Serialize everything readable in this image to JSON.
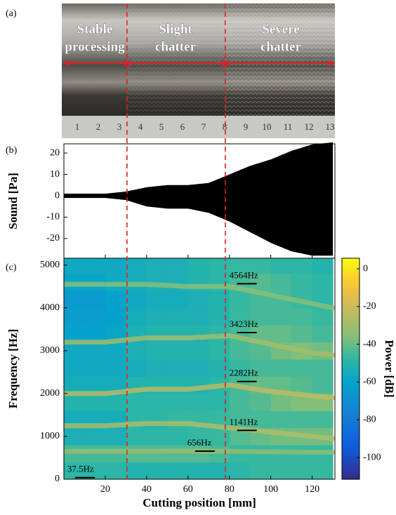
{
  "photo": {
    "label": "(a)",
    "regions": [
      [
        "Stable",
        "processing"
      ],
      [
        "Slight",
        "chatter"
      ],
      [
        "Severe",
        "chatter"
      ]
    ],
    "ruler_labels": [
      "1",
      "2",
      "3",
      "4",
      "5",
      "6",
      "7",
      "8",
      "9",
      "10",
      "11",
      "12",
      "13"
    ]
  },
  "chart_data": [
    {
      "type": "area",
      "panel": "(b)",
      "ylabel": "Sound [Pa]",
      "x": [
        0,
        10,
        20,
        30,
        40,
        50,
        60,
        70,
        80,
        90,
        100,
        110,
        120,
        130
      ],
      "series": [
        {
          "color": "#000000",
          "values": [
            1,
            1,
            1,
            2,
            4,
            5,
            5,
            6,
            10,
            14,
            17,
            21,
            24,
            25
          ]
        },
        {
          "color": "#000000",
          "values": [
            -1,
            -1,
            -1,
            -2,
            -5,
            -6,
            -6,
            -8,
            -12,
            -17,
            -22,
            -26,
            -28,
            -28
          ]
        }
      ],
      "xlim": [
        0,
        131
      ],
      "ylim": [
        -29.2,
        24.3
      ],
      "yticks": [
        -20,
        -10,
        0,
        10,
        20
      ]
    },
    {
      "type": "heatmap",
      "panel": "(c)",
      "xlabel": "Cutting position [mm]",
      "ylabel": "Frequency [Hz]",
      "xlim": [
        0,
        131
      ],
      "ylim": [
        0,
        5160
      ],
      "xticks": [
        20,
        40,
        60,
        80,
        100,
        120
      ],
      "yticks": [
        0,
        1000,
        2000,
        3000,
        4000,
        5000
      ],
      "xbins": [
        0,
        10,
        20,
        30,
        40,
        50,
        60,
        70,
        80,
        90,
        100,
        110,
        120,
        130
      ],
      "ybins": [
        0,
        400,
        800,
        1200,
        1600,
        2000,
        2400,
        2800,
        3200,
        3600,
        4000,
        4400,
        4800,
        5200
      ],
      "z": [
        [
          -48,
          -48,
          -48,
          -50,
          -50,
          -50,
          -50,
          -50,
          -48,
          -46,
          -46,
          -46,
          -46
        ],
        [
          -44,
          -44,
          -44,
          -42,
          -42,
          -42,
          -42,
          -44,
          -46,
          -46,
          -46,
          -46,
          -46
        ],
        [
          -52,
          -52,
          -52,
          -48,
          -48,
          -48,
          -46,
          -46,
          -42,
          -40,
          -38,
          -38,
          -38
        ],
        [
          -54,
          -54,
          -54,
          -48,
          -48,
          -46,
          -46,
          -46,
          -44,
          -44,
          -44,
          -44,
          -44
        ],
        [
          -50,
          -50,
          -50,
          -48,
          -48,
          -48,
          -48,
          -48,
          -44,
          -42,
          -38,
          -36,
          -36
        ],
        [
          -54,
          -54,
          -54,
          -50,
          -50,
          -50,
          -50,
          -48,
          -44,
          -40,
          -40,
          -42,
          -44
        ],
        [
          -56,
          -56,
          -56,
          -54,
          -52,
          -52,
          -52,
          -50,
          -46,
          -44,
          -44,
          -44,
          -44
        ],
        [
          -56,
          -56,
          -56,
          -52,
          -50,
          -50,
          -50,
          -48,
          -44,
          -42,
          -38,
          -36,
          -38
        ],
        [
          -60,
          -60,
          -58,
          -52,
          -50,
          -50,
          -50,
          -48,
          -44,
          -40,
          -40,
          -42,
          -44
        ],
        [
          -62,
          -62,
          -60,
          -54,
          -52,
          -52,
          -52,
          -50,
          -46,
          -44,
          -44,
          -44,
          -46
        ],
        [
          -64,
          -64,
          -60,
          -56,
          -54,
          -54,
          -52,
          -50,
          -46,
          -44,
          -44,
          -46,
          -48
        ],
        [
          -58,
          -58,
          -56,
          -54,
          -52,
          -52,
          -50,
          -48,
          -44,
          -42,
          -44,
          -46,
          -48
        ],
        [
          -56,
          -56,
          -56,
          -54,
          -52,
          -52,
          -50,
          -48,
          -46,
          -46,
          -48,
          -48,
          -50
        ]
      ],
      "ridge_x": [
        0,
        20,
        40,
        60,
        80,
        100,
        120,
        130
      ],
      "ridges": [
        {
          "power": -32,
          "values": [
            650,
            650,
            650,
            660,
            650,
            640,
            630,
            630
          ]
        },
        {
          "power": -25,
          "values": [
            1250,
            1250,
            1300,
            1300,
            1200,
            1100,
            1000,
            950
          ]
        },
        {
          "power": -22,
          "values": [
            2000,
            2000,
            2100,
            2100,
            2200,
            2050,
            1950,
            1900
          ]
        },
        {
          "power": -28,
          "values": [
            3200,
            3200,
            3300,
            3300,
            3350,
            3150,
            2950,
            2900
          ]
        },
        {
          "power": -34,
          "values": [
            4550,
            4550,
            4550,
            4500,
            4500,
            4300,
            4100,
            4000
          ]
        }
      ],
      "annotations": [
        {
          "value": 37.5,
          "label": "37.5Hz",
          "x": [
            5.4,
            15
          ]
        },
        {
          "value": 656,
          "label": "656Hz",
          "x": [
            63.4,
            72.9
          ]
        },
        {
          "value": 1141,
          "label": "1141Hz",
          "x": [
            83.7,
            93.2
          ]
        },
        {
          "value": 2282,
          "label": "2282Hz",
          "x": [
            83.7,
            93.2
          ]
        },
        {
          "value": 3423,
          "label": "3423Hz",
          "x": [
            83.7,
            93.2
          ]
        },
        {
          "value": 4564,
          "label": "4564Hz",
          "x": [
            83.7,
            93.2
          ]
        }
      ],
      "vlines": [
        30.5,
        78
      ],
      "colorbar": {
        "label": "Power [dB]",
        "lim": [
          -111.5,
          5.6
        ],
        "ticks": [
          0,
          -20,
          -40,
          -60,
          -80,
          -100
        ]
      }
    }
  ]
}
